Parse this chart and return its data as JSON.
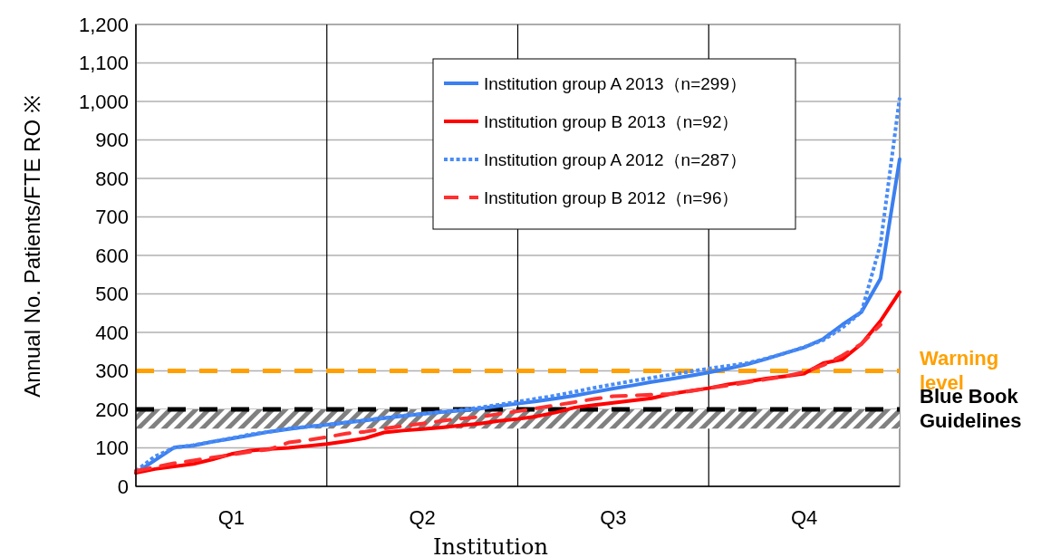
{
  "chart_data": {
    "type": "line",
    "ylabel": "Annual No. Patients/FTE RO ※",
    "xlabel": "Institution",
    "categories": [
      null,
      null,
      null,
      null,
      null,
      "Q1",
      null,
      null,
      null,
      null,
      null,
      null,
      null,
      null,
      null,
      "Q2",
      null,
      null,
      null,
      null,
      null,
      null,
      null,
      null,
      null,
      "Q3",
      null,
      null,
      null,
      null,
      null,
      null,
      null,
      null,
      null,
      "Q4",
      null,
      null,
      null,
      null,
      null
    ],
    "ylim": [
      0,
      1200
    ],
    "yticks": [
      0,
      100,
      200,
      300,
      400,
      500,
      600,
      700,
      800,
      900,
      {
        "value": 1000,
        "label": "1,000"
      },
      {
        "value": 1100,
        "label": "1,100"
      },
      {
        "value": 1200,
        "label": "1,200"
      }
    ],
    "grid": true,
    "legend": "top right",
    "series": [
      {
        "name": "Institution group A 2013（n=299）",
        "color": "#3b7ff0",
        "line_style": "solid",
        "values": [
          35,
          68,
          101,
          106,
          116,
          124,
          133,
          142,
          149,
          155,
          160,
          166,
          171,
          177,
          183,
          188,
          193,
          197,
          202,
          209,
          215,
          221,
          228,
          236,
          245,
          254,
          262,
          271,
          279,
          287,
          296,
          306,
          317,
          331,
          346,
          361,
          383,
          420,
          453,
          540,
          850
        ]
      },
      {
        "name": "Institution group B 2013（n=92）",
        "color": "#ff0000",
        "line_style": "solid",
        "values": [
          35,
          45,
          52,
          58,
          70,
          84,
          93,
          97,
          100,
          105,
          110,
          117,
          125,
          140,
          145,
          149,
          153,
          158,
          163,
          170,
          175,
          182,
          192,
          205,
          211,
          217,
          223,
          229,
          240,
          248,
          255,
          265,
          272,
          280,
          286,
          293,
          320,
          330,
          370,
          430,
          505
        ]
      },
      {
        "name": "Institution group A 2012（n=287）",
        "color": "#4a8cf5",
        "line_style": "dotted",
        "values": [
          40,
          78,
          100,
          107,
          116,
          125,
          135,
          142,
          150,
          155,
          160,
          166,
          172,
          178,
          184,
          188,
          193,
          198,
          205,
          212,
          220,
          228,
          236,
          246,
          256,
          265,
          274,
          282,
          290,
          298,
          306,
          313,
          320,
          332,
          346,
          362,
          380,
          412,
          453,
          630,
          1010
        ]
      },
      {
        "name": "Institution group B 2012（n=96）",
        "color": "#ff3030",
        "line_style": "dashed",
        "values": [
          40,
          50,
          60,
          67,
          75,
          82,
          90,
          96,
          114,
          120,
          128,
          137,
          142,
          150,
          157,
          163,
          170,
          176,
          180,
          188,
          195,
          203,
          211,
          219,
          227,
          234,
          236,
          238,
          240,
          247,
          255,
          262,
          270,
          278,
          286,
          297,
          315,
          340,
          370,
          420,
          null
        ]
      }
    ],
    "ref_lines": [
      {
        "axis": "y",
        "value": 300,
        "label": "Warning level",
        "color": "#ffa000",
        "line_style": "dashed"
      },
      {
        "axis": "y",
        "value": 200,
        "label": "Blue Book Guidelines",
        "color": "#000000",
        "line_style": "dashed"
      }
    ],
    "bands": [
      {
        "axis": "y",
        "from": 150,
        "to": 200,
        "color": "#808080"
      }
    ]
  }
}
